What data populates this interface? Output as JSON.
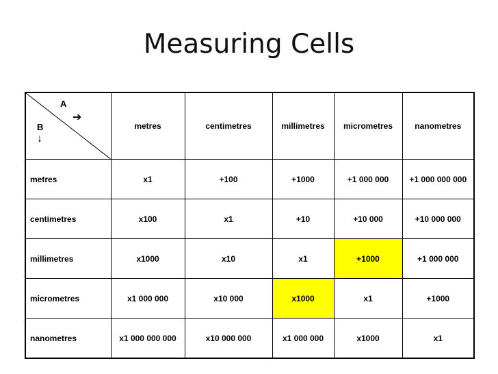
{
  "title": "Measuring Cells",
  "corner": {
    "label_a": "A",
    "label_b": "B",
    "arrow_right": "➔",
    "arrow_down": "🡓"
  },
  "columns": [
    "metres",
    "centimetres",
    "millimetres",
    "micrometres",
    "nanometres"
  ],
  "rows": [
    {
      "label": "metres",
      "values": [
        "x1",
        "+100",
        "+1000",
        "+1 000 000",
        "+1 000 000 000"
      ]
    },
    {
      "label": "centimetres",
      "values": [
        "x100",
        "x1",
        "+10",
        "+10 000",
        "+10 000 000"
      ]
    },
    {
      "label": "millimetres",
      "values": [
        "x1000",
        "x10",
        "x1",
        "+1000",
        "+1 000 000"
      ]
    },
    {
      "label": "micrometres",
      "values": [
        "x1 000 000",
        "x10 000",
        "x1000",
        "x1",
        "+1000"
      ]
    },
    {
      "label": "nanometres",
      "values": [
        "x1 000 000 000",
        "x10 000 000",
        "x1 000 000",
        "x1000",
        "x1"
      ]
    }
  ],
  "highlight_color": "#ffff00"
}
